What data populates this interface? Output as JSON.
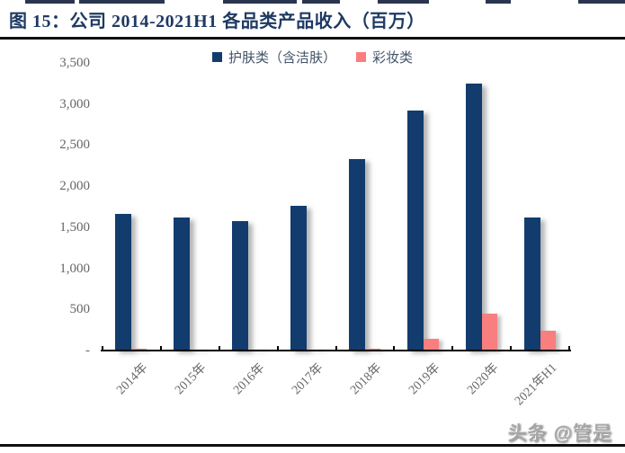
{
  "page": {
    "watermark": "头条 @管是"
  },
  "chart_data": {
    "type": "bar",
    "title": "图 15：公司 2014-2021H1 各品类产品收入（百万）",
    "categories": [
      "2014年",
      "2015年",
      "2016年",
      "2017年",
      "2018年",
      "2019年",
      "2020年",
      "2021年H1"
    ],
    "series": [
      {
        "name": "护肤类（含洁肤）",
        "color": "#123c6d",
        "values": [
          1659,
          1619,
          1576,
          1760,
          2330,
          2921,
          3250,
          1622
        ]
      },
      {
        "name": "彩妆类",
        "color": "#f97e7e",
        "values": [
          26,
          14,
          9,
          11,
          19,
          137,
          443,
          245
        ]
      }
    ],
    "ylabel": "",
    "xlabel": "",
    "ylim": [
      0,
      3500
    ],
    "yticks": [
      {
        "label": "3,500",
        "value": 3500
      },
      {
        "label": "3,000",
        "value": 3000
      },
      {
        "label": "2,500",
        "value": 2500
      },
      {
        "label": "2,000",
        "value": 2000
      },
      {
        "label": "1,500",
        "value": 1500
      },
      {
        "label": "1,000",
        "value": 1000
      },
      {
        "label": "500",
        "value": 500
      },
      {
        "label": "-",
        "value": 0
      }
    ],
    "grid": false,
    "legend_position": "top-center"
  }
}
